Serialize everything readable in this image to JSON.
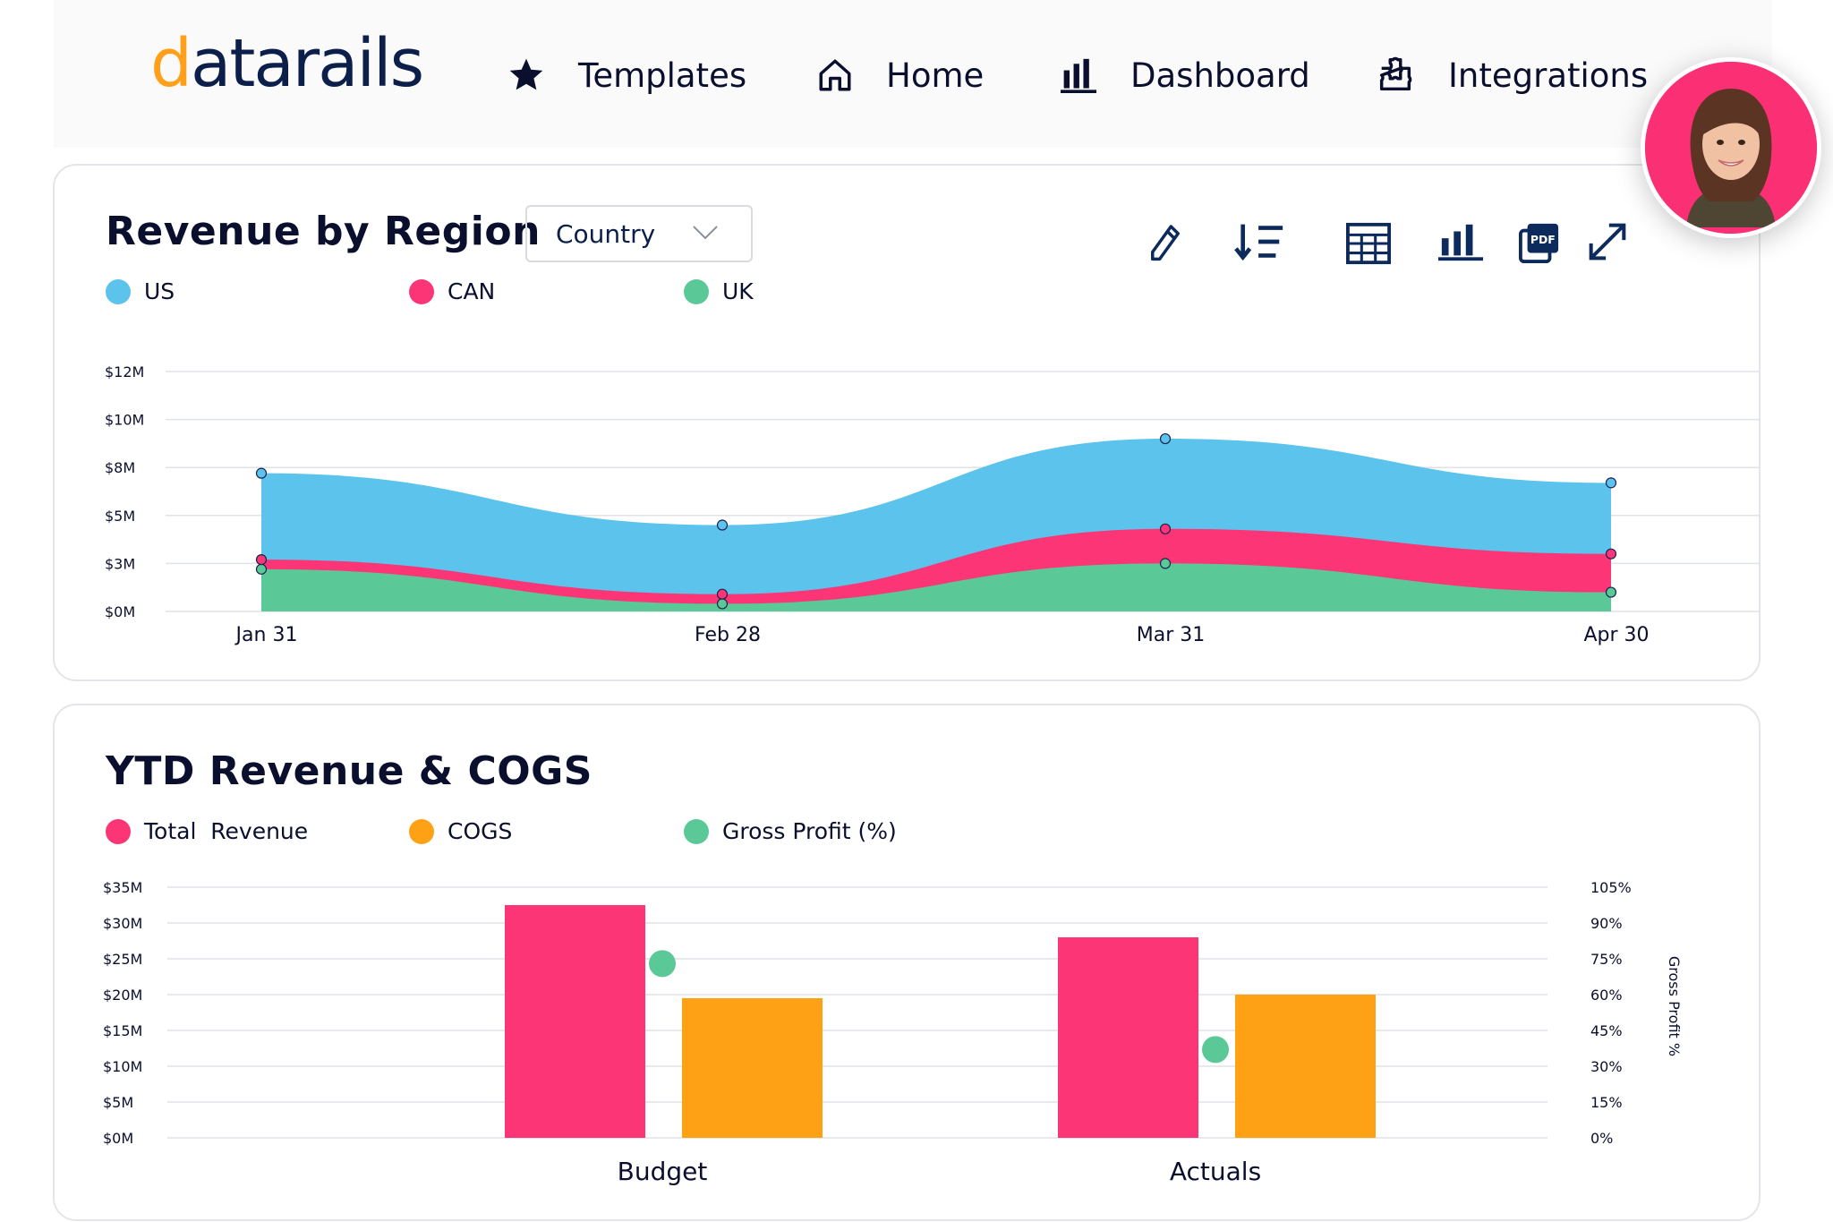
{
  "nav": {
    "logo": {
      "prefix": "d",
      "rest": "atarails"
    },
    "items": [
      {
        "label": "Templates",
        "icon": "star-icon"
      },
      {
        "label": "Home",
        "icon": "home-icon"
      },
      {
        "label": "Dashboard",
        "icon": "bar-chart-icon"
      },
      {
        "label": "Integrations",
        "icon": "puzzle-icon"
      }
    ],
    "avatar": "user-avatar"
  },
  "revenue_card": {
    "title": "Revenue by Region",
    "dropdown_value": "Country",
    "toolbar": [
      "edit-icon",
      "sort-icon",
      "table-icon",
      "bar-chart-icon",
      "pdf-icon",
      "expand-icon"
    ],
    "legend": [
      {
        "label": "US",
        "color": "#5bc3ec"
      },
      {
        "label": "CAN",
        "color": "#fb3576"
      },
      {
        "label": "UK",
        "color": "#5bc898"
      }
    ]
  },
  "ytd_card": {
    "title": "YTD Revenue & COGS",
    "legend": [
      {
        "label": "Total  Revenue",
        "color": "#fb3576"
      },
      {
        "label": "COGS",
        "color": "#ffa114"
      },
      {
        "label": "Gross Profit (%)",
        "color": "#5bc898"
      }
    ]
  },
  "chart_data": [
    {
      "type": "area",
      "stacked": true,
      "x": [
        "Jan 31",
        "Feb 28",
        "Mar 31",
        "Apr 30"
      ],
      "y_tick_labels": [
        "$0M",
        "$3M",
        "$5M",
        "$8M",
        "$10M",
        "$12M"
      ],
      "ylim": [
        0,
        12.5
      ],
      "series": [
        {
          "name": "UK",
          "color": "#5bc898",
          "values": [
            2.2,
            0.4,
            2.5,
            1.0
          ]
        },
        {
          "name": "CAN",
          "color": "#fb3576",
          "values": [
            0.5,
            0.5,
            1.8,
            2.0
          ]
        },
        {
          "name": "US",
          "color": "#5bc3ec",
          "values": [
            4.5,
            3.6,
            4.7,
            3.7
          ]
        }
      ],
      "grid": true
    },
    {
      "type": "bar",
      "categories": [
        "Budget",
        "Actuals"
      ],
      "y_tick_labels": [
        "$0M",
        "$5M",
        "$10M",
        "$15M",
        "$20M",
        "$25M",
        "$30M",
        "$35M"
      ],
      "ylim": [
        0,
        35
      ],
      "y2_tick_labels": [
        "0%",
        "15%",
        "30%",
        "45%",
        "60%",
        "75%",
        "90%",
        "105%"
      ],
      "y2lim": [
        0,
        105
      ],
      "y2label": "Gross Profit %",
      "series": [
        {
          "name": "Total  Revenue",
          "color": "#fb3576",
          "values": [
            32.5,
            28.0
          ]
        },
        {
          "name": "COGS",
          "color": "#ffa114",
          "values": [
            19.5,
            20.0
          ]
        },
        {
          "name": "Gross Profit (%)",
          "color": "#5bc898",
          "values": [
            73,
            37
          ],
          "axis": "y2",
          "mark": "point"
        }
      ],
      "grid": true
    }
  ]
}
